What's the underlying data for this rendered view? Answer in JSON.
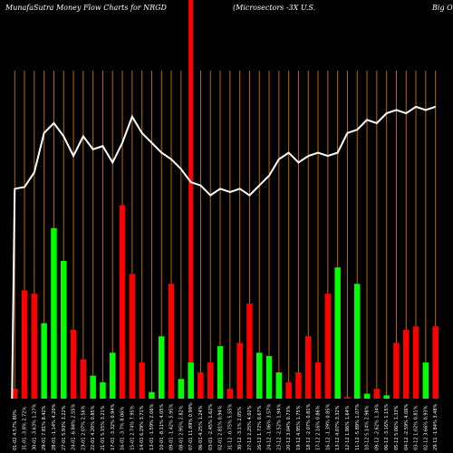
{
  "header": {
    "left": "MunafaSutra  Money Flow  Charts for NRGD",
    "middle": "(Microsectors -3X   U.S.",
    "right": "Big Oil"
  },
  "colors": {
    "background": "#000000",
    "up_bar": "#00ff00",
    "down_bar": "#ff0000",
    "grid_line": "#b86b00",
    "price_line": "#ffffff",
    "highlight": "#ff0000"
  },
  "chart_data": {
    "type": "bar",
    "highlight_index": 18,
    "categories": [
      "01-02 4.57% 80%",
      "31-01 -3.8% 2.72%",
      "30-01 -3.63% 1.27%",
      "29-01 7.81% 8.42%",
      "28-01 -1.14% 4.20%",
      "27-01 5.93% 3.22%",
      "24-01 -6.84% 2.55%",
      "23-01 2.07% 2.56%",
      "22-01 4.20% 0.85%",
      "21-01 5.15% 3.21%",
      "17-01 -3.32% 0.94%",
      "16-01 -3.7% 8.06%",
      "15-01 2.74% 7.95%",
      "14-01 6.29% 3.71%",
      "13-01 -1.59% 2.06%",
      "10-01 -8.11% 4.05%",
      "09-01 -1.42% 5.95%",
      "08-01 2.95% 2.82%",
      "07-01 11.89% 0.99%",
      "06-01 4.25% 1.24%",
      "03-01 -2.45% 1.62%",
      "02-01 2.81% 0.94%",
      "31-12 -0.75% 5.55%",
      "30-12 -3.1% 2.05%",
      "27-12 2.25% 4.02%",
      "26-12 1.72% 0.67%",
      "24-12 -1.06% 3.57%",
      "23-12 -2.52% 1.94%",
      "20-12 3.04% 0.73%",
      "19-12 4.95% 1.75%",
      "18-12 -2.07% 0.81%",
      "17-12 2.16% 0.86%",
      "16-12 -1.39% 0.85%",
      "13-12 4.07% 3.32%",
      "12-12 1.86% 1.64%",
      "11-12 -5.89% 1.07%",
      "10-12 5.14% 2.98%",
      "09-12 -2.62% 1.34%",
      "06-12 -3.16% 1.15%",
      "05-12 5.06% 1.33%",
      "04-12 -2.59% 4.06%",
      "03-12 1.02% 0.81%",
      "02-12 3.66% 0.93%",
      "29-11 -1.84% 3.48%"
    ],
    "series": [
      {
        "values": [
          3,
          33,
          32,
          23,
          52,
          42,
          21,
          12,
          7,
          5,
          14,
          59,
          38,
          11,
          2,
          19,
          35,
          6,
          11,
          8,
          11,
          16,
          3,
          17,
          29,
          14,
          13,
          8,
          5,
          8,
          19,
          11,
          32,
          40,
          0.5,
          35,
          1.5,
          3,
          1,
          17,
          21,
          22,
          11,
          22
        ],
        "colors": [
          "red",
          "red",
          "red",
          "green",
          "green",
          "green",
          "red",
          "red",
          "green",
          "green",
          "green",
          "red",
          "red",
          "red",
          "green",
          "green",
          "red",
          "green",
          "green",
          "red",
          "red",
          "green",
          "red",
          "red",
          "red",
          "green",
          "green",
          "green",
          "red",
          "red",
          "red",
          "red",
          "red",
          "green",
          "red",
          "green",
          "green",
          "red",
          "green",
          "red",
          "red",
          "red",
          "green",
          "red"
        ]
      }
    ],
    "price_line": [
      64,
      64.5,
      69,
      81,
      84,
      80,
      74,
      80,
      76,
      77,
      72,
      78,
      86,
      81,
      78,
      75,
      73,
      70,
      66,
      65,
      62,
      64,
      63,
      64,
      62,
      65,
      68,
      73,
      75,
      72,
      74,
      75,
      74,
      75,
      81,
      82,
      85,
      84,
      87,
      88,
      87,
      89,
      88,
      89
    ],
    "ylim": [
      0,
      100
    ]
  }
}
